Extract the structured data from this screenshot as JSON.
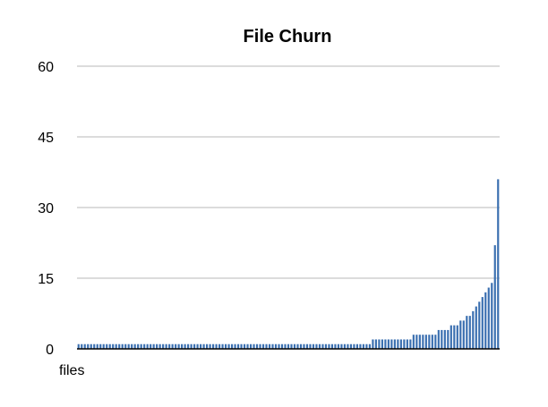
{
  "chart_data": {
    "type": "bar",
    "title": "File Churn",
    "xlabel": "files",
    "ylabel": "",
    "ylim": [
      0,
      60
    ],
    "yticks": [
      0,
      15,
      30,
      45,
      60
    ],
    "grid": true,
    "bar_color": "#3a6fb0",
    "values": [
      1,
      1,
      1,
      1,
      1,
      1,
      1,
      1,
      1,
      1,
      1,
      1,
      1,
      1,
      1,
      1,
      1,
      1,
      1,
      1,
      1,
      1,
      1,
      1,
      1,
      1,
      1,
      1,
      1,
      1,
      1,
      1,
      1,
      1,
      1,
      1,
      1,
      1,
      1,
      1,
      1,
      1,
      1,
      1,
      1,
      1,
      1,
      1,
      1,
      1,
      1,
      1,
      1,
      1,
      1,
      1,
      1,
      1,
      1,
      1,
      1,
      1,
      1,
      1,
      1,
      1,
      1,
      1,
      1,
      1,
      1,
      1,
      1,
      1,
      1,
      1,
      1,
      1,
      1,
      1,
      1,
      1,
      1,
      1,
      1,
      1,
      1,
      1,
      1,
      1,
      1,
      1,
      1,
      1,
      2,
      2,
      2,
      2,
      2,
      2,
      2,
      2,
      2,
      2,
      2,
      2,
      2,
      3,
      3,
      3,
      3,
      3,
      3,
      3,
      3,
      4,
      4,
      4,
      4,
      5,
      5,
      5,
      6,
      6,
      7,
      7,
      8,
      9,
      10,
      11,
      12,
      13,
      14,
      22,
      36
    ]
  }
}
